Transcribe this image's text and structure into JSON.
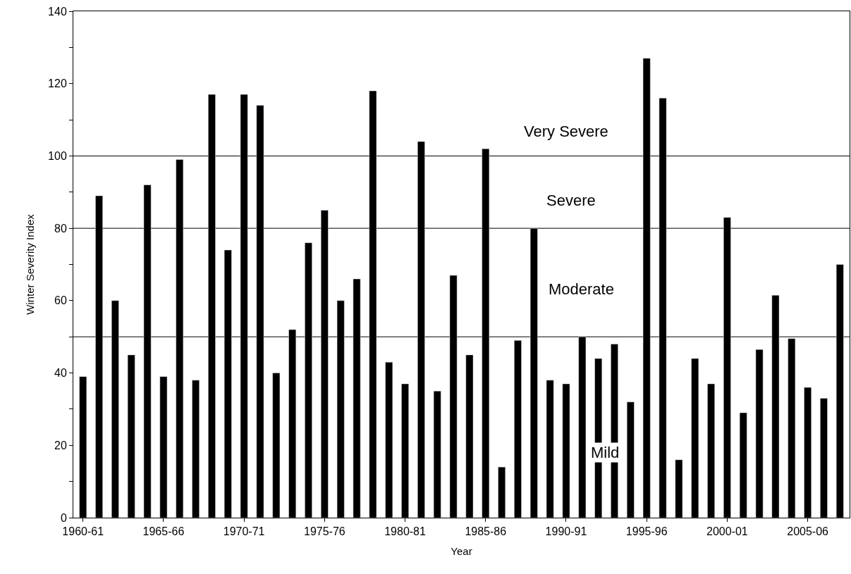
{
  "chart_data": {
    "type": "bar",
    "xlabel": "Year",
    "ylabel": "Winter Severity Index",
    "categories": [
      "1960-61",
      null,
      null,
      null,
      null,
      "1965-66",
      null,
      null,
      null,
      null,
      "1970-71",
      null,
      null,
      null,
      null,
      "1975-76",
      null,
      null,
      null,
      null,
      "1980-81",
      null,
      null,
      null,
      null,
      "1985-86",
      null,
      null,
      null,
      null,
      "1990-91",
      null,
      null,
      null,
      null,
      "1995-96",
      null,
      null,
      null,
      null,
      "2000-01",
      null,
      null,
      null,
      null,
      "2005-06",
      null,
      null
    ],
    "values": [
      39,
      89,
      60,
      45,
      92,
      39,
      99,
      38,
      117,
      74,
      117,
      114,
      40,
      52,
      76,
      85,
      60,
      66,
      118,
      43,
      37,
      104,
      35,
      67,
      45,
      102,
      14,
      49,
      80,
      38,
      37,
      50,
      44,
      48,
      32,
      127,
      116,
      16,
      44,
      37,
      83,
      29,
      46.5,
      61.5,
      49.5,
      36,
      33,
      70
    ],
    "color": "#000000",
    "ylim": [
      0,
      140
    ],
    "yticks": [
      0,
      {
        "value": 10,
        "label": null
      },
      20,
      {
        "value": 30,
        "label": null
      },
      40,
      {
        "value": 50,
        "label": null
      },
      60,
      {
        "value": 70,
        "label": null
      },
      80,
      {
        "value": 90,
        "label": null
      },
      100,
      {
        "value": 110,
        "label": null
      },
      120,
      {
        "value": 130,
        "label": null
      },
      140
    ],
    "ref_lines": [
      {
        "axis": "y",
        "value": 100,
        "color": "#000000"
      },
      {
        "axis": "y",
        "value": 80,
        "color": "#000000"
      },
      {
        "axis": "y",
        "value": 50,
        "color": "#000000"
      }
    ],
    "annotations": [
      "Very Severe",
      "Severe",
      "Moderate",
      "Mild"
    ],
    "grid": false,
    "legend": false
  }
}
